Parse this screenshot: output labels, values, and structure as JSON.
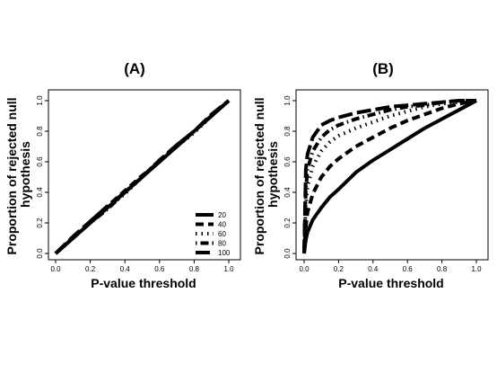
{
  "chart_data": [
    {
      "type": "line",
      "title": "(A)",
      "xlabel": "P-value threshold",
      "ylabel": "Proportion of rejected null hypothesis",
      "xlim": [
        0,
        1
      ],
      "ylim": [
        0,
        1
      ],
      "xticks": [
        "0.0",
        "0.2",
        "0.4",
        "0.6",
        "0.8",
        "1.0"
      ],
      "yticks": [
        "0.0",
        "0.2",
        "0.4",
        "0.6",
        "0.8",
        "1.0"
      ],
      "legend": {
        "placement": "bottom-right",
        "entries": [
          "20",
          "40",
          "60",
          "80",
          "100"
        ]
      },
      "series": [
        {
          "name": "20",
          "dash": "solid",
          "x": [
            0,
            0.1,
            0.2,
            0.3,
            0.4,
            0.5,
            0.6,
            0.7,
            0.8,
            0.9,
            1.0
          ],
          "y": [
            0,
            0.1,
            0.2,
            0.3,
            0.4,
            0.5,
            0.6,
            0.7,
            0.8,
            0.9,
            1.0
          ]
        },
        {
          "name": "40",
          "dash": "dashed",
          "x": [
            0,
            0.1,
            0.2,
            0.3,
            0.4,
            0.5,
            0.6,
            0.7,
            0.8,
            0.9,
            1.0
          ],
          "y": [
            0,
            0.1,
            0.21,
            0.31,
            0.41,
            0.51,
            0.6,
            0.71,
            0.8,
            0.9,
            1.0
          ]
        },
        {
          "name": "60",
          "dash": "dotted",
          "x": [
            0,
            0.1,
            0.2,
            0.3,
            0.4,
            0.5,
            0.6,
            0.7,
            0.8,
            0.9,
            1.0
          ],
          "y": [
            0,
            0.1,
            0.2,
            0.3,
            0.39,
            0.5,
            0.6,
            0.7,
            0.79,
            0.9,
            1.0
          ]
        },
        {
          "name": "80",
          "dash": "dotdash",
          "x": [
            0,
            0.1,
            0.2,
            0.3,
            0.4,
            0.5,
            0.6,
            0.7,
            0.8,
            0.9,
            1.0
          ],
          "y": [
            0,
            0.1,
            0.2,
            0.29,
            0.4,
            0.5,
            0.61,
            0.7,
            0.8,
            0.9,
            1.0
          ]
        },
        {
          "name": "100",
          "dash": "longdash",
          "x": [
            0,
            0.1,
            0.2,
            0.3,
            0.4,
            0.5,
            0.6,
            0.7,
            0.8,
            0.9,
            1.0
          ],
          "y": [
            0,
            0.11,
            0.21,
            0.31,
            0.4,
            0.5,
            0.61,
            0.71,
            0.8,
            0.91,
            1.0
          ]
        }
      ]
    },
    {
      "type": "line",
      "title": "(B)",
      "xlabel": "P-value threshold",
      "ylabel": "Proportion of rejected null hypothesis",
      "xlim": [
        0,
        1
      ],
      "ylim": [
        0,
        1
      ],
      "xticks": [
        "0.0",
        "0.2",
        "0.4",
        "0.6",
        "0.8",
        "1.0"
      ],
      "yticks": [
        "0.0",
        "0.2",
        "0.4",
        "0.6",
        "0.8",
        "1.0"
      ],
      "series": [
        {
          "name": "20",
          "dash": "solid",
          "x": [
            0,
            0.01,
            0.02,
            0.05,
            0.1,
            0.15,
            0.2,
            0.3,
            0.4,
            0.5,
            0.6,
            0.7,
            0.8,
            0.9,
            1.0
          ],
          "y": [
            0,
            0.09,
            0.14,
            0.22,
            0.3,
            0.37,
            0.42,
            0.53,
            0.61,
            0.68,
            0.75,
            0.82,
            0.88,
            0.94,
            1.0
          ]
        },
        {
          "name": "40",
          "dash": "dashed",
          "x": [
            0,
            0.01,
            0.02,
            0.05,
            0.1,
            0.15,
            0.2,
            0.3,
            0.4,
            0.5,
            0.6,
            0.7,
            0.8,
            0.9,
            1.0
          ],
          "y": [
            0,
            0.18,
            0.27,
            0.39,
            0.5,
            0.57,
            0.62,
            0.7,
            0.76,
            0.82,
            0.87,
            0.91,
            0.95,
            0.98,
            1.0
          ]
        },
        {
          "name": "60",
          "dash": "dotted",
          "x": [
            0,
            0.01,
            0.02,
            0.05,
            0.1,
            0.15,
            0.2,
            0.3,
            0.4,
            0.5,
            0.6,
            0.7,
            0.8,
            0.9,
            1.0
          ],
          "y": [
            0,
            0.32,
            0.44,
            0.57,
            0.67,
            0.73,
            0.77,
            0.82,
            0.86,
            0.9,
            0.93,
            0.96,
            0.98,
            0.99,
            1.0
          ]
        },
        {
          "name": "80",
          "dash": "dotdash",
          "x": [
            0,
            0.01,
            0.02,
            0.05,
            0.1,
            0.15,
            0.2,
            0.3,
            0.4,
            0.5,
            0.6,
            0.7,
            0.8,
            0.9,
            1.0
          ],
          "y": [
            0,
            0.42,
            0.55,
            0.67,
            0.76,
            0.81,
            0.84,
            0.88,
            0.91,
            0.94,
            0.96,
            0.97,
            0.99,
            1.0,
            1.0
          ]
        },
        {
          "name": "100",
          "dash": "longdash",
          "x": [
            0,
            0.01,
            0.02,
            0.05,
            0.1,
            0.15,
            0.2,
            0.3,
            0.4,
            0.5,
            0.6,
            0.7,
            0.8,
            0.9,
            1.0
          ],
          "y": [
            0,
            0.55,
            0.65,
            0.76,
            0.84,
            0.87,
            0.89,
            0.92,
            0.94,
            0.96,
            0.97,
            0.98,
            0.99,
            1.0,
            1.0
          ]
        }
      ]
    }
  ]
}
